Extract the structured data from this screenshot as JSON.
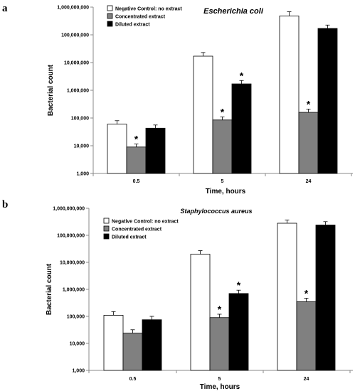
{
  "figure": {
    "panels": [
      {
        "letter": "a"
      },
      {
        "letter": "b"
      }
    ]
  },
  "chart_data": [
    {
      "type": "bar",
      "title": "Escherichia coli",
      "xlabel": "Time, hours",
      "ylabel": "Bacterial count",
      "yscale": "log",
      "ylim": [
        1000,
        1000000000
      ],
      "yticks": [
        "1,000",
        "10,000",
        "100,000",
        "1,000,000",
        "10,000,000",
        "100,000,000",
        "1,000,000,000"
      ],
      "categories": [
        "0.5",
        "5",
        "24"
      ],
      "legend_position": "top-left",
      "colors": [
        "#ffffff",
        "#808080",
        "#000000"
      ],
      "series": [
        {
          "name": "Negative Control: no extract",
          "values": [
            60000,
            17000000,
            480000000
          ],
          "errors": [
            20000,
            6000000,
            200000000
          ],
          "star": [
            false,
            false,
            false
          ]
        },
        {
          "name": "Concentrated extract",
          "values": [
            9000,
            85000,
            160000
          ],
          "errors": [
            2500,
            25000,
            50000
          ],
          "star": [
            true,
            true,
            true
          ]
        },
        {
          "name": "Diluted extract",
          "values": [
            43000,
            1700000,
            170000000
          ],
          "errors": [
            13000,
            550000,
            55000000
          ],
          "star": [
            false,
            true,
            false
          ]
        }
      ]
    },
    {
      "type": "bar",
      "title": "Staphylococcus aureus",
      "xlabel": "Time, hours",
      "ylabel": "Bacterial count",
      "yscale": "log",
      "ylim": [
        1000,
        1000000000
      ],
      "yticks": [
        "1,000",
        "10,000",
        "100,000",
        "1,000,000",
        "10,000,000",
        "100,000,000",
        "1,000,000,000"
      ],
      "categories": [
        "0.5",
        "5",
        "24"
      ],
      "legend_position": "top-left",
      "colors": [
        "#ffffff",
        "#808080",
        "#000000"
      ],
      "series": [
        {
          "name": "Negative Control: no extract",
          "values": [
            110000,
            20000000,
            280000000
          ],
          "errors": [
            40000,
            7000000,
            90000000
          ],
          "star": [
            false,
            false,
            false
          ]
        },
        {
          "name": "Concentrated extract",
          "values": [
            24000,
            90000,
            350000
          ],
          "errors": [
            8000,
            30000,
            120000
          ],
          "star": [
            false,
            true,
            true
          ]
        },
        {
          "name": "Diluted extract",
          "values": [
            75000,
            700000,
            240000000
          ],
          "errors": [
            25000,
            230000,
            80000000
          ],
          "star": [
            false,
            true,
            false
          ]
        }
      ]
    }
  ]
}
